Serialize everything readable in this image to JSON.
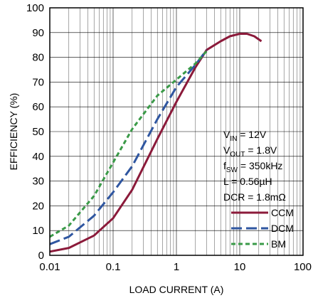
{
  "chart_data": {
    "type": "line",
    "xlabel": "LOAD CURRENT (A)",
    "ylabel": "EFFICIENCY (%)",
    "xscale": "log",
    "xlim": [
      0.01,
      100
    ],
    "ylim": [
      0,
      100
    ],
    "xticks": [
      0.01,
      0.1,
      1,
      10,
      100
    ],
    "xtick_labels": [
      "0.01",
      "0.1",
      "1",
      "10",
      "100"
    ],
    "yticks": [
      0,
      10,
      20,
      30,
      40,
      50,
      60,
      70,
      80,
      90,
      100
    ],
    "ytick_labels": [
      "0",
      "10",
      "20",
      "30",
      "40",
      "50",
      "60",
      "70",
      "80",
      "90",
      "100"
    ],
    "grid": true,
    "legend_position": "bottom-right",
    "series": [
      {
        "name": "CCM",
        "color": "#8b1a3a",
        "style": "solid",
        "x": [
          0.01,
          0.02,
          0.05,
          0.1,
          0.2,
          0.5,
          1,
          2,
          3,
          5,
          7,
          10,
          13,
          17,
          22
        ],
        "y": [
          1.5,
          3,
          8,
          15,
          26.5,
          47,
          62,
          76,
          83,
          86.5,
          88.5,
          89.5,
          89.5,
          88.5,
          86.5
        ]
      },
      {
        "name": "DCM",
        "color": "#2f56a0",
        "style": "dashed",
        "x": [
          0.01,
          0.02,
          0.05,
          0.1,
          0.2,
          0.5,
          1,
          2,
          3
        ],
        "y": [
          4.5,
          7.5,
          16,
          25.5,
          36,
          55,
          68,
          77,
          83
        ]
      },
      {
        "name": "BM",
        "color": "#3a9a48",
        "style": "dotted",
        "x": [
          0.01,
          0.02,
          0.05,
          0.1,
          0.2,
          0.5,
          1,
          2,
          3
        ],
        "y": [
          7.5,
          12,
          24,
          37.5,
          51,
          64.5,
          71,
          77.5,
          82.5
        ]
      }
    ],
    "annotations": [
      {
        "main": "V",
        "sub": "IN",
        "rest": " = 12V"
      },
      {
        "main": "V",
        "sub": "OUT",
        "rest": " = 1.8V"
      },
      {
        "main": "f",
        "sub": "SW",
        "rest": " = 350kHz"
      },
      {
        "main": "L = 0.56µH",
        "sub": "",
        "rest": ""
      },
      {
        "main": "DCR = 1.8mΩ",
        "sub": "",
        "rest": ""
      }
    ]
  }
}
